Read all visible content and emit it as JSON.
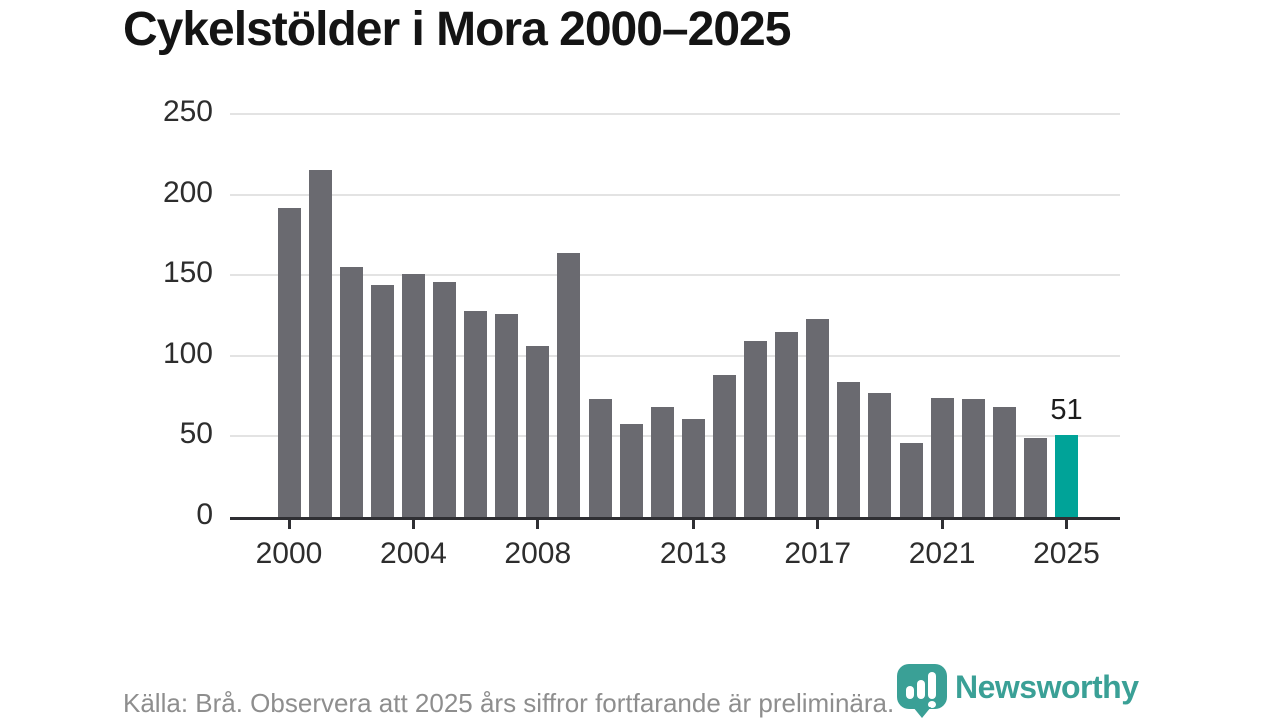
{
  "title": "Cykelstölder i Mora 2000–2025",
  "footer": "Källa: Brå. Observera att 2025 års siffror fortfarande är preliminära.",
  "logo": {
    "text": "Newsworthy",
    "icon": "newsworthy-speech-bubble-bar-chart-icon"
  },
  "colors": {
    "bar": "#6a6a70",
    "highlight": "#00a398",
    "gridline": "#e3e3e3",
    "axis": "#2f2f33",
    "title_text": "#141414",
    "tick_text": "#2d2d2d",
    "footer_text": "#8e8e8e",
    "logo_teal": "#3aa096"
  },
  "chart_data": {
    "type": "bar",
    "title": "Cykelstölder i Mora 2000–2025",
    "xlabel": "",
    "ylabel": "",
    "x": [
      2000,
      2001,
      2002,
      2003,
      2004,
      2005,
      2006,
      2007,
      2008,
      2009,
      2010,
      2011,
      2012,
      2013,
      2014,
      2015,
      2016,
      2017,
      2018,
      2019,
      2020,
      2021,
      2022,
      2023,
      2024,
      2025
    ],
    "values": [
      192,
      215,
      155,
      144,
      151,
      146,
      128,
      126,
      106,
      164,
      73,
      58,
      68,
      61,
      88,
      109,
      115,
      123,
      84,
      77,
      46,
      74,
      73,
      68,
      49,
      51
    ],
    "highlight_year": 2025,
    "highlight_reason": "preliminary 2025 figure",
    "annotations": [
      {
        "x": 2025,
        "text": "51"
      }
    ],
    "xticks": [
      2000,
      2004,
      2008,
      2013,
      2017,
      2021,
      2025
    ],
    "yticks": [
      0,
      50,
      100,
      150,
      200,
      250
    ],
    "ylim": [
      0,
      250
    ],
    "grid": true,
    "legend": false,
    "bar_colors": {
      "default": "#6a6a70",
      "2025": "#00a398"
    }
  }
}
